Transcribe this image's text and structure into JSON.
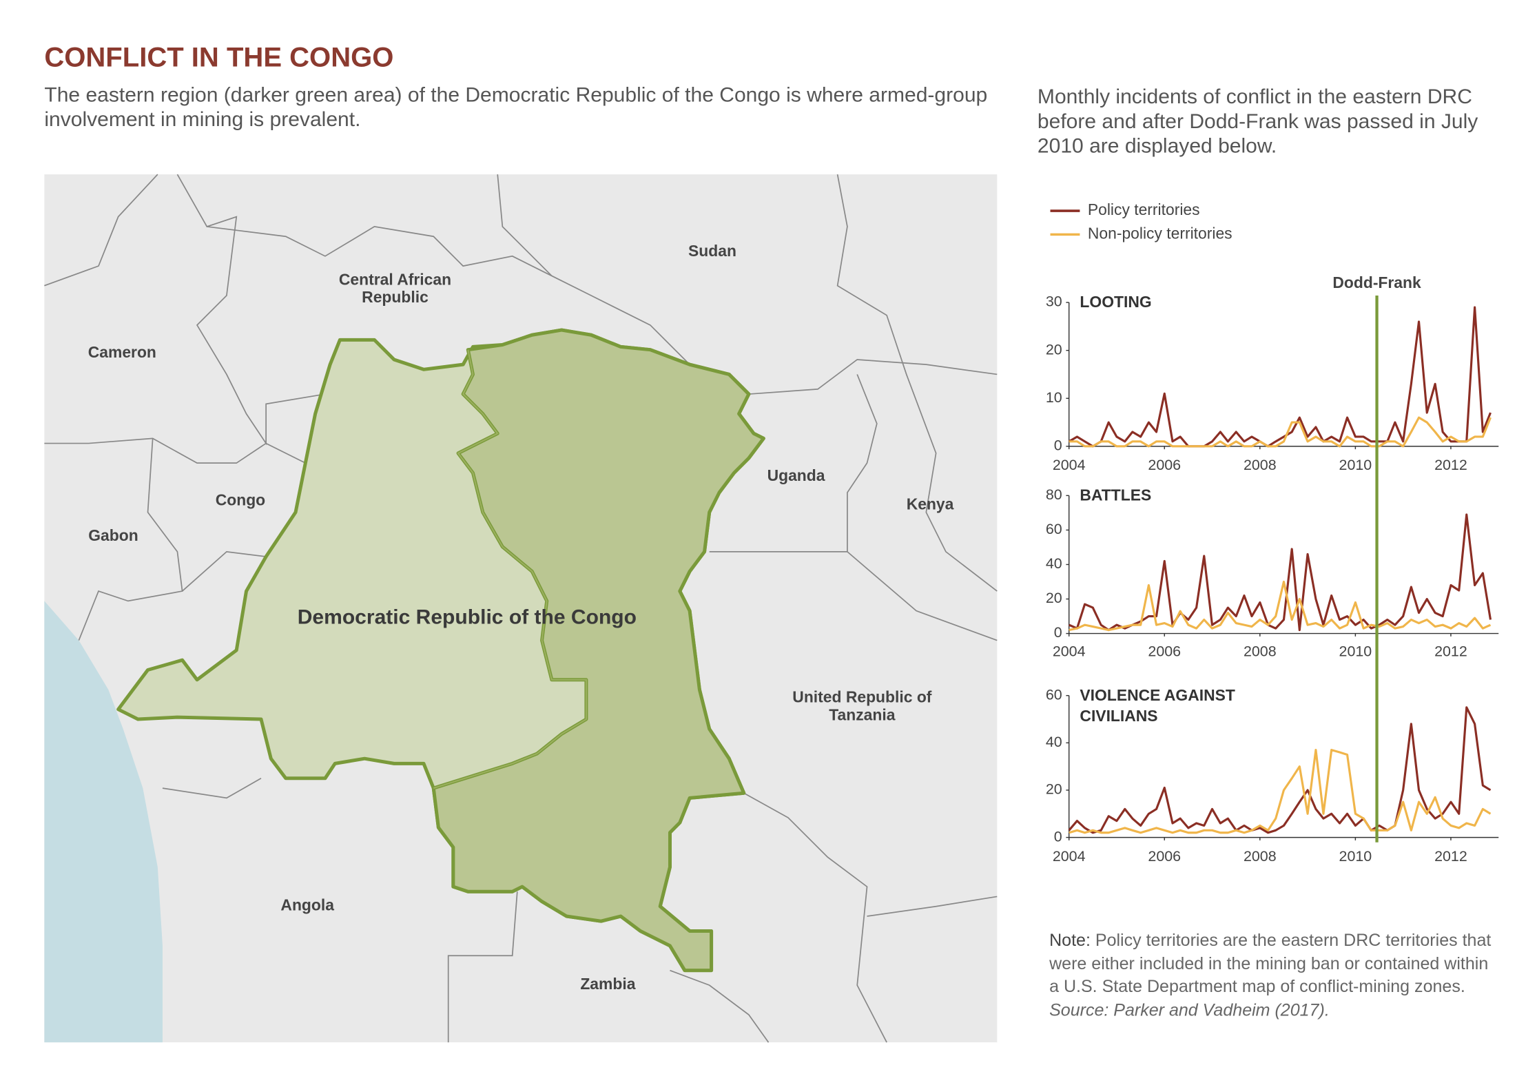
{
  "header": {
    "title": "CONFLICT IN THE CONGO",
    "subtitle": "The eastern region (darker green area) of the Democratic Republic of the Congo is where armed-group involvement in mining is prevalent."
  },
  "map": {
    "labels": [
      "Cameron",
      "Central African Republic",
      "Sudan",
      "Congo",
      "Gabon",
      "Uganda",
      "Kenya",
      "Democratic Republic of the Congo",
      "United Republic of Tanzania",
      "Angola",
      "Zambia"
    ]
  },
  "charts_intro": "Monthly incidents of conflict in the eastern DRC before and after Dodd-Frank was passed in July 2010 are displayed below.",
  "annotation": {
    "label": "Dodd-Frank",
    "x": 2010.45,
    "color": "#7a9a3a"
  },
  "note": {
    "label": "Note:",
    "text": "Policy territories are the eastern DRC territories that were either included in the mining ban or contained within a U.S. State Department map of conflict-mining zones.",
    "source": "Source: Parker and Vadheim (2017)."
  },
  "chart_data": [
    {
      "type": "line",
      "title": "LOOTING",
      "x": [
        2004,
        2004.17,
        2004.33,
        2004.5,
        2004.67,
        2004.83,
        2005,
        2005.17,
        2005.33,
        2005.5,
        2005.67,
        2005.83,
        2006,
        2006.17,
        2006.33,
        2006.5,
        2006.67,
        2006.83,
        2007,
        2007.17,
        2007.33,
        2007.5,
        2007.67,
        2007.83,
        2008,
        2008.17,
        2008.33,
        2008.5,
        2008.67,
        2008.83,
        2009,
        2009.17,
        2009.33,
        2009.5,
        2009.67,
        2009.83,
        2010,
        2010.17,
        2010.33,
        2010.5,
        2010.67,
        2010.83,
        2011,
        2011.17,
        2011.33,
        2011.5,
        2011.67,
        2011.83,
        2012,
        2012.17,
        2012.33,
        2012.5,
        2012.67,
        2012.83
      ],
      "series": [
        {
          "name": "Policy territories",
          "color": "#8b2e24",
          "values": [
            1,
            2,
            1,
            0,
            1,
            5,
            2,
            1,
            3,
            2,
            5,
            3,
            11,
            1,
            2,
            0,
            0,
            0,
            1,
            3,
            1,
            3,
            1,
            2,
            1,
            0,
            1,
            2,
            3,
            6,
            2,
            4,
            1,
            2,
            1,
            6,
            2,
            2,
            1,
            1,
            1,
            5,
            1,
            13,
            26,
            7,
            13,
            3,
            1,
            1,
            1,
            29,
            3,
            7
          ]
        },
        {
          "name": "Non-policy territories",
          "color": "#f0b54a",
          "values": [
            1,
            1,
            0,
            0,
            1,
            1,
            0,
            0,
            1,
            1,
            0,
            1,
            1,
            0,
            0,
            0,
            0,
            0,
            0,
            1,
            0,
            1,
            0,
            0,
            1,
            0,
            0,
            1,
            5,
            5,
            1,
            2,
            1,
            1,
            0,
            2,
            1,
            1,
            0,
            0,
            1,
            1,
            0,
            3,
            6,
            5,
            3,
            1,
            2,
            1,
            1,
            2,
            2,
            6
          ]
        }
      ],
      "xlim": [
        2004,
        2013
      ],
      "xticks": [
        2004,
        2006,
        2008,
        2010,
        2012
      ],
      "ylim": [
        0,
        30
      ],
      "yticks": [
        0,
        10,
        20,
        30
      ]
    },
    {
      "type": "line",
      "title": "BATTLES",
      "x": [
        2004,
        2004.17,
        2004.33,
        2004.5,
        2004.67,
        2004.83,
        2005,
        2005.17,
        2005.33,
        2005.5,
        2005.67,
        2005.83,
        2006,
        2006.17,
        2006.33,
        2006.5,
        2006.67,
        2006.83,
        2007,
        2007.17,
        2007.33,
        2007.5,
        2007.67,
        2007.83,
        2008,
        2008.17,
        2008.33,
        2008.5,
        2008.67,
        2008.83,
        2009,
        2009.17,
        2009.33,
        2009.5,
        2009.67,
        2009.83,
        2010,
        2010.17,
        2010.33,
        2010.5,
        2010.67,
        2010.83,
        2011,
        2011.17,
        2011.33,
        2011.5,
        2011.67,
        2011.83,
        2012,
        2012.17,
        2012.33,
        2012.5,
        2012.67,
        2012.83
      ],
      "series": [
        {
          "name": "Policy territories",
          "color": "#8b2e24",
          "values": [
            5,
            3,
            17,
            15,
            5,
            2,
            5,
            3,
            5,
            7,
            10,
            10,
            42,
            5,
            12,
            8,
            15,
            45,
            5,
            8,
            15,
            10,
            22,
            10,
            18,
            5,
            3,
            8,
            49,
            2,
            46,
            20,
            5,
            22,
            8,
            10,
            5,
            8,
            3,
            5,
            8,
            5,
            10,
            27,
            12,
            20,
            12,
            10,
            28,
            25,
            69,
            28,
            35,
            8
          ]
        },
        {
          "name": "Non-policy territories",
          "color": "#f0b54a",
          "values": [
            2,
            3,
            5,
            4,
            3,
            2,
            3,
            4,
            5,
            5,
            28,
            5,
            6,
            4,
            13,
            5,
            3,
            8,
            3,
            5,
            12,
            6,
            5,
            4,
            8,
            5,
            10,
            30,
            8,
            20,
            5,
            6,
            4,
            8,
            3,
            5,
            18,
            3,
            5,
            4,
            6,
            3,
            4,
            8,
            6,
            8,
            4,
            5,
            3,
            6,
            4,
            9,
            3,
            5
          ]
        }
      ],
      "xlim": [
        2004,
        2013
      ],
      "xticks": [
        2004,
        2006,
        2008,
        2010,
        2012
      ],
      "ylim": [
        0,
        80
      ],
      "yticks": [
        0,
        20,
        40,
        60,
        80
      ]
    },
    {
      "type": "line",
      "title": "VIOLENCE AGAINST CIVILIANS",
      "x": [
        2004,
        2004.17,
        2004.33,
        2004.5,
        2004.67,
        2004.83,
        2005,
        2005.17,
        2005.33,
        2005.5,
        2005.67,
        2005.83,
        2006,
        2006.17,
        2006.33,
        2006.5,
        2006.67,
        2006.83,
        2007,
        2007.17,
        2007.33,
        2007.5,
        2007.67,
        2007.83,
        2008,
        2008.17,
        2008.33,
        2008.5,
        2008.67,
        2008.83,
        2009,
        2009.17,
        2009.33,
        2009.5,
        2009.67,
        2009.83,
        2010,
        2010.17,
        2010.33,
        2010.5,
        2010.67,
        2010.83,
        2011,
        2011.17,
        2011.33,
        2011.5,
        2011.67,
        2011.83,
        2012,
        2012.17,
        2012.33,
        2012.5,
        2012.67,
        2012.83
      ],
      "series": [
        {
          "name": "Policy territories",
          "color": "#8b2e24",
          "values": [
            3,
            7,
            4,
            2,
            3,
            9,
            7,
            12,
            8,
            5,
            10,
            12,
            21,
            6,
            8,
            4,
            6,
            5,
            12,
            6,
            8,
            3,
            5,
            3,
            4,
            2,
            3,
            5,
            10,
            15,
            20,
            12,
            8,
            10,
            6,
            10,
            5,
            8,
            3,
            5,
            3,
            5,
            20,
            48,
            20,
            12,
            8,
            10,
            15,
            10,
            55,
            48,
            22,
            20
          ]
        },
        {
          "name": "Non-policy territories",
          "color": "#f0b54a",
          "values": [
            2,
            3,
            2,
            3,
            2,
            2,
            3,
            4,
            3,
            2,
            3,
            4,
            3,
            2,
            3,
            2,
            2,
            3,
            3,
            2,
            2,
            3,
            2,
            3,
            5,
            3,
            8,
            20,
            25,
            30,
            10,
            37,
            10,
            37,
            36,
            35,
            10,
            8,
            3,
            3,
            3,
            5,
            15,
            3,
            15,
            10,
            17,
            8,
            5,
            4,
            6,
            5,
            12,
            10
          ]
        }
      ],
      "xlim": [
        2004,
        2013
      ],
      "xticks": [
        2004,
        2006,
        2008,
        2010,
        2012
      ],
      "ylim": [
        0,
        60
      ],
      "yticks": [
        0,
        20,
        40,
        60
      ]
    }
  ]
}
